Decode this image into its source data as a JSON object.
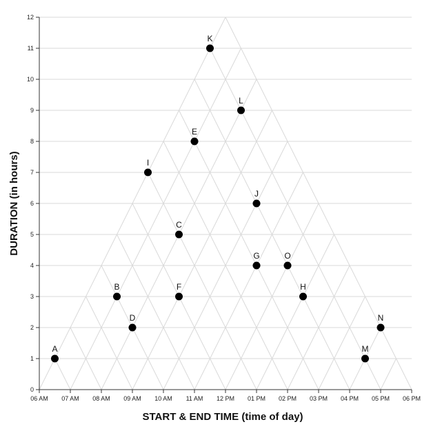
{
  "chart_data": {
    "type": "scatter",
    "title": "",
    "xlabel": "START & END TIME (time of day)",
    "ylabel": "DURATION (in hours)",
    "xlim": [
      6,
      18
    ],
    "ylim": [
      0,
      12
    ],
    "x_ticks": [
      "06 AM",
      "07 AM",
      "08 AM",
      "09 AM",
      "10 AM",
      "11 AM",
      "12 PM",
      "01 PM",
      "02 PM",
      "03 PM",
      "04 PM",
      "05 PM",
      "06 PM"
    ],
    "y_ticks": [
      "0",
      "1",
      "2",
      "3",
      "4",
      "5",
      "6",
      "7",
      "8",
      "9",
      "10",
      "11",
      "12"
    ],
    "grid": true,
    "grid_style": "triangular",
    "colors": {
      "point": "#000000",
      "grid": "#d9d9d9",
      "axis": "#333333"
    },
    "points": [
      {
        "label": "A",
        "x": 6.5,
        "y": 1
      },
      {
        "label": "B",
        "x": 8.5,
        "y": 3
      },
      {
        "label": "C",
        "x": 10.5,
        "y": 5
      },
      {
        "label": "D",
        "x": 9,
        "y": 2
      },
      {
        "label": "E",
        "x": 11,
        "y": 8
      },
      {
        "label": "F",
        "x": 10.5,
        "y": 3
      },
      {
        "label": "G",
        "x": 13,
        "y": 4
      },
      {
        "label": "H",
        "x": 14.5,
        "y": 3
      },
      {
        "label": "I",
        "x": 9.5,
        "y": 7
      },
      {
        "label": "J",
        "x": 13,
        "y": 6
      },
      {
        "label": "K",
        "x": 11.5,
        "y": 11
      },
      {
        "label": "L",
        "x": 12.5,
        "y": 9
      },
      {
        "label": "M",
        "x": 16.5,
        "y": 1
      },
      {
        "label": "N",
        "x": 17,
        "y": 2
      },
      {
        "label": "O",
        "x": 14,
        "y": 4
      }
    ]
  }
}
